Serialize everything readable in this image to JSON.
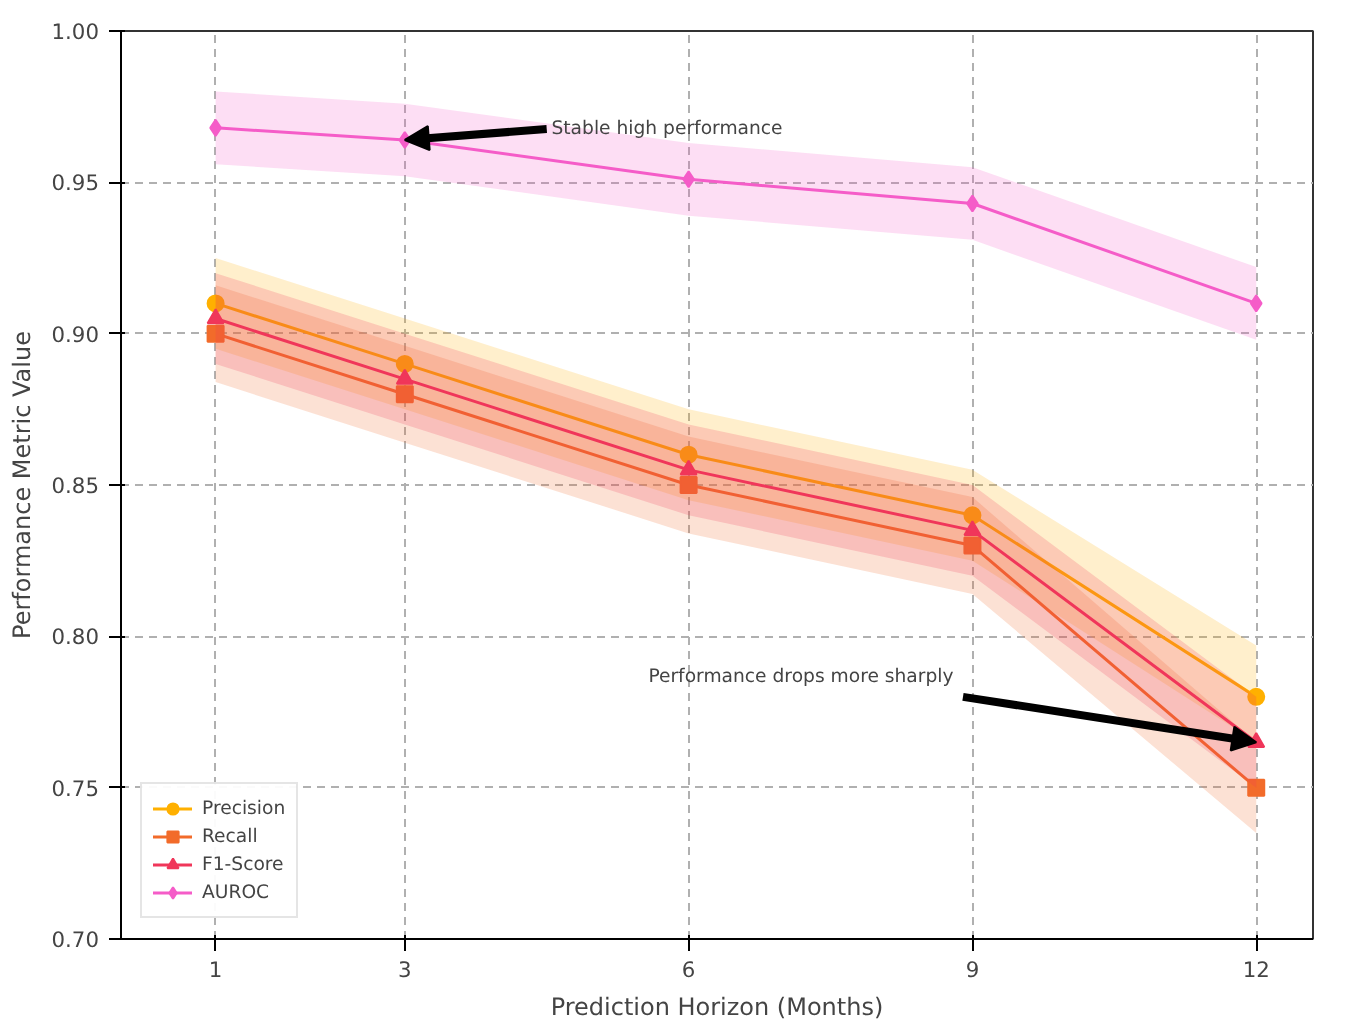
{
  "chart_data": {
    "type": "line",
    "xlabel": "Prediction Horizon (Months)",
    "ylabel": "Performance Metric Value",
    "x": [
      1,
      3,
      6,
      9,
      12
    ],
    "series": [
      {
        "name": "Precision",
        "color": "#ffb000",
        "marker": "circle",
        "values": [
          0.91,
          0.89,
          0.86,
          0.84,
          0.78
        ],
        "lower": [
          0.895,
          0.875,
          0.845,
          0.825,
          0.765
        ],
        "upper": [
          0.925,
          0.905,
          0.875,
          0.855,
          0.797
        ]
      },
      {
        "name": "Recall",
        "color": "#f26b2a",
        "marker": "square",
        "values": [
          0.9,
          0.88,
          0.85,
          0.83,
          0.75
        ],
        "lower": [
          0.884,
          0.864,
          0.834,
          0.814,
          0.735
        ],
        "upper": [
          0.916,
          0.896,
          0.866,
          0.846,
          0.765
        ]
      },
      {
        "name": "F1-Score",
        "color": "#f0365a",
        "marker": "triangle",
        "values": [
          0.905,
          0.885,
          0.855,
          0.835,
          0.765
        ],
        "lower": [
          0.89,
          0.87,
          0.84,
          0.82,
          0.75
        ],
        "upper": [
          0.92,
          0.9,
          0.87,
          0.85,
          0.78
        ]
      },
      {
        "name": "AUROC",
        "color": "#f55cc8",
        "marker": "diamond",
        "values": [
          0.968,
          0.964,
          0.951,
          0.943,
          0.91
        ],
        "lower": [
          0.956,
          0.952,
          0.939,
          0.931,
          0.898
        ],
        "upper": [
          0.98,
          0.976,
          0.963,
          0.955,
          0.922
        ]
      }
    ],
    "xlim": [
      0,
      12.6
    ],
    "xticks": [
      1,
      3,
      6,
      9,
      12
    ],
    "ylim": [
      0.7,
      1.0
    ],
    "yticks": [
      {
        "value": 0.7,
        "label": "0.70"
      },
      {
        "value": 0.75,
        "label": "0.75"
      },
      {
        "value": 0.8,
        "label": "0.80"
      },
      {
        "value": 0.85,
        "label": "0.85"
      },
      {
        "value": 0.9,
        "label": "0.90"
      },
      {
        "value": 0.95,
        "label": "0.95"
      },
      {
        "value": 1.0,
        "label": "1.00"
      }
    ],
    "annotations": [
      {
        "text": "Stable high performance",
        "x": 3,
        "y": 0.964
      },
      {
        "text": "Performance drops more sharply",
        "x": 12,
        "y": 0.765
      }
    ],
    "grid": true,
    "legend": "bottom left",
    "line_style": "solid"
  }
}
